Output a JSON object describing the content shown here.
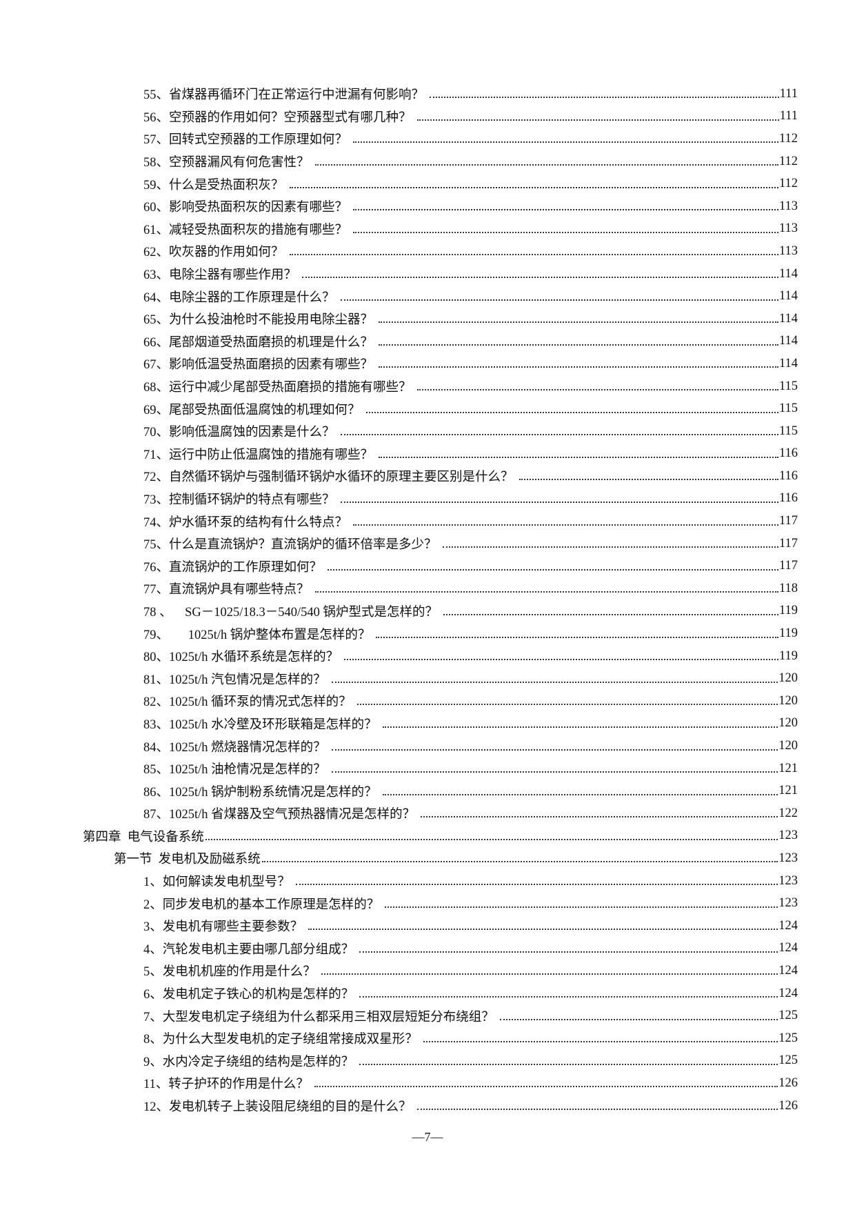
{
  "entries": [
    {
      "level": 2,
      "text": "55、省煤器再循环门在正常运行中泄漏有何影响？",
      "page": "111"
    },
    {
      "level": 2,
      "text": "56、空预器的作用如何？空预器型式有哪几种？",
      "page": "111"
    },
    {
      "level": 2,
      "text": "57、回转式空预器的工作原理如何？",
      "page": "112"
    },
    {
      "level": 2,
      "text": "58、空预器漏风有何危害性？",
      "page": "112"
    },
    {
      "level": 2,
      "text": "59、什么是受热面积灰？",
      "page": "112"
    },
    {
      "level": 2,
      "text": "60、影响受热面积灰的因素有哪些？",
      "page": "113"
    },
    {
      "level": 2,
      "text": "61、减轻受热面积灰的措施有哪些？",
      "page": "113"
    },
    {
      "level": 2,
      "text": "62、吹灰器的作用如何？",
      "page": "113"
    },
    {
      "level": 2,
      "text": "63、电除尘器有哪些作用？",
      "page": "114"
    },
    {
      "level": 2,
      "text": "64、电除尘器的工作原理是什么？",
      "page": "114"
    },
    {
      "level": 2,
      "text": "65、为什么投油枪时不能投用电除尘器？",
      "page": "114"
    },
    {
      "level": 2,
      "text": "66、尾部烟道受热面磨损的机理是什么？",
      "page": "114"
    },
    {
      "level": 2,
      "text": "67、影响低温受热面磨损的因素有哪些？",
      "page": "114"
    },
    {
      "level": 2,
      "text": "68、运行中减少尾部受热面磨损的措施有哪些？",
      "page": "115"
    },
    {
      "level": 2,
      "text": "69、尾部受热面低温腐蚀的机理如何？",
      "page": "115"
    },
    {
      "level": 2,
      "text": "70、影响低温腐蚀的因素是什么？",
      "page": "115"
    },
    {
      "level": 2,
      "text": "71、运行中防止低温腐蚀的措施有哪些？",
      "page": "116"
    },
    {
      "level": 2,
      "text": "72、自然循环锅炉与强制循环锅炉水循环的原理主要区别是什么？",
      "page": "116"
    },
    {
      "level": 2,
      "text": "73、控制循环锅炉的特点有哪些？",
      "page": "116"
    },
    {
      "level": 2,
      "text": "74、炉水循环泵的结构有什么特点？",
      "page": "117"
    },
    {
      "level": 2,
      "text": "75、什么是直流锅炉？直流锅炉的循环倍率是多少？",
      "page": "117"
    },
    {
      "level": 2,
      "text": "76、直流锅炉的工作原理如何？",
      "page": "117"
    },
    {
      "level": 2,
      "text": "77、直流锅炉具有哪些特点？",
      "page": "118"
    },
    {
      "level": 2,
      "text": "78 、    SG－1025/18.3－540/540 锅炉型式是怎样的？",
      "page": "119"
    },
    {
      "level": 2,
      "text": "79、      1025t/h 锅炉整体布置是怎样的？",
      "page": "119"
    },
    {
      "level": 2,
      "text": "80、1025t/h 水循环系统是怎样的？",
      "page": "119"
    },
    {
      "level": 2,
      "text": "81、1025t/h 汽包情况是怎样的？",
      "page": "120"
    },
    {
      "level": 2,
      "text": "82、1025t/h 循环泵的情况式怎样的？",
      "page": "120"
    },
    {
      "level": 2,
      "text": "83、1025t/h 水冷壁及环形联箱是怎样的？",
      "page": "120"
    },
    {
      "level": 2,
      "text": "84、1025t/h 燃烧器情况怎样的？",
      "page": "120"
    },
    {
      "level": 2,
      "text": "85、1025t/h 油枪情况是怎样的？",
      "page": "121"
    },
    {
      "level": 2,
      "text": "86、1025t/h 锅炉制粉系统情况是怎样的？",
      "page": "121"
    },
    {
      "level": 2,
      "text": "87、1025t/h 省煤器及空气预热器情况是怎样的？",
      "page": "122"
    },
    {
      "level": 0,
      "text": "第四章  电气设备系统",
      "page": "123"
    },
    {
      "level": 1,
      "text": "第一节  发电机及励磁系统",
      "page": "123"
    },
    {
      "level": 2,
      "text": "1、如何解读发电机型号？",
      "page": "123"
    },
    {
      "level": 2,
      "text": "2、同步发电机的基本工作原理是怎样的？",
      "page": "123"
    },
    {
      "level": 2,
      "text": "3、发电机有哪些主要参数？",
      "page": "124"
    },
    {
      "level": 2,
      "text": "4、汽轮发电机主要由哪几部分组成？",
      "page": "124"
    },
    {
      "level": 2,
      "text": "5、发电机机座的作用是什么？",
      "page": "124"
    },
    {
      "level": 2,
      "text": "6、发电机定子铁心的机构是怎样的？",
      "page": "124"
    },
    {
      "level": 2,
      "text": "7、大型发电机定子绕组为什么都采用三相双层短矩分布绕组？",
      "page": "125"
    },
    {
      "level": 2,
      "text": "8、为什么大型发电机的定子绕组常接成双星形？",
      "page": "125"
    },
    {
      "level": 2,
      "text": "9、水内冷定子绕组的结构是怎样的？",
      "page": "125"
    },
    {
      "level": 2,
      "text": "11、转子护环的作用是什么？",
      "page": "126"
    },
    {
      "level": 2,
      "text": "12、发电机转子上装设阻尼绕组的目的是什么？",
      "page": "126"
    }
  ],
  "footer": {
    "page_number": "—7—"
  }
}
